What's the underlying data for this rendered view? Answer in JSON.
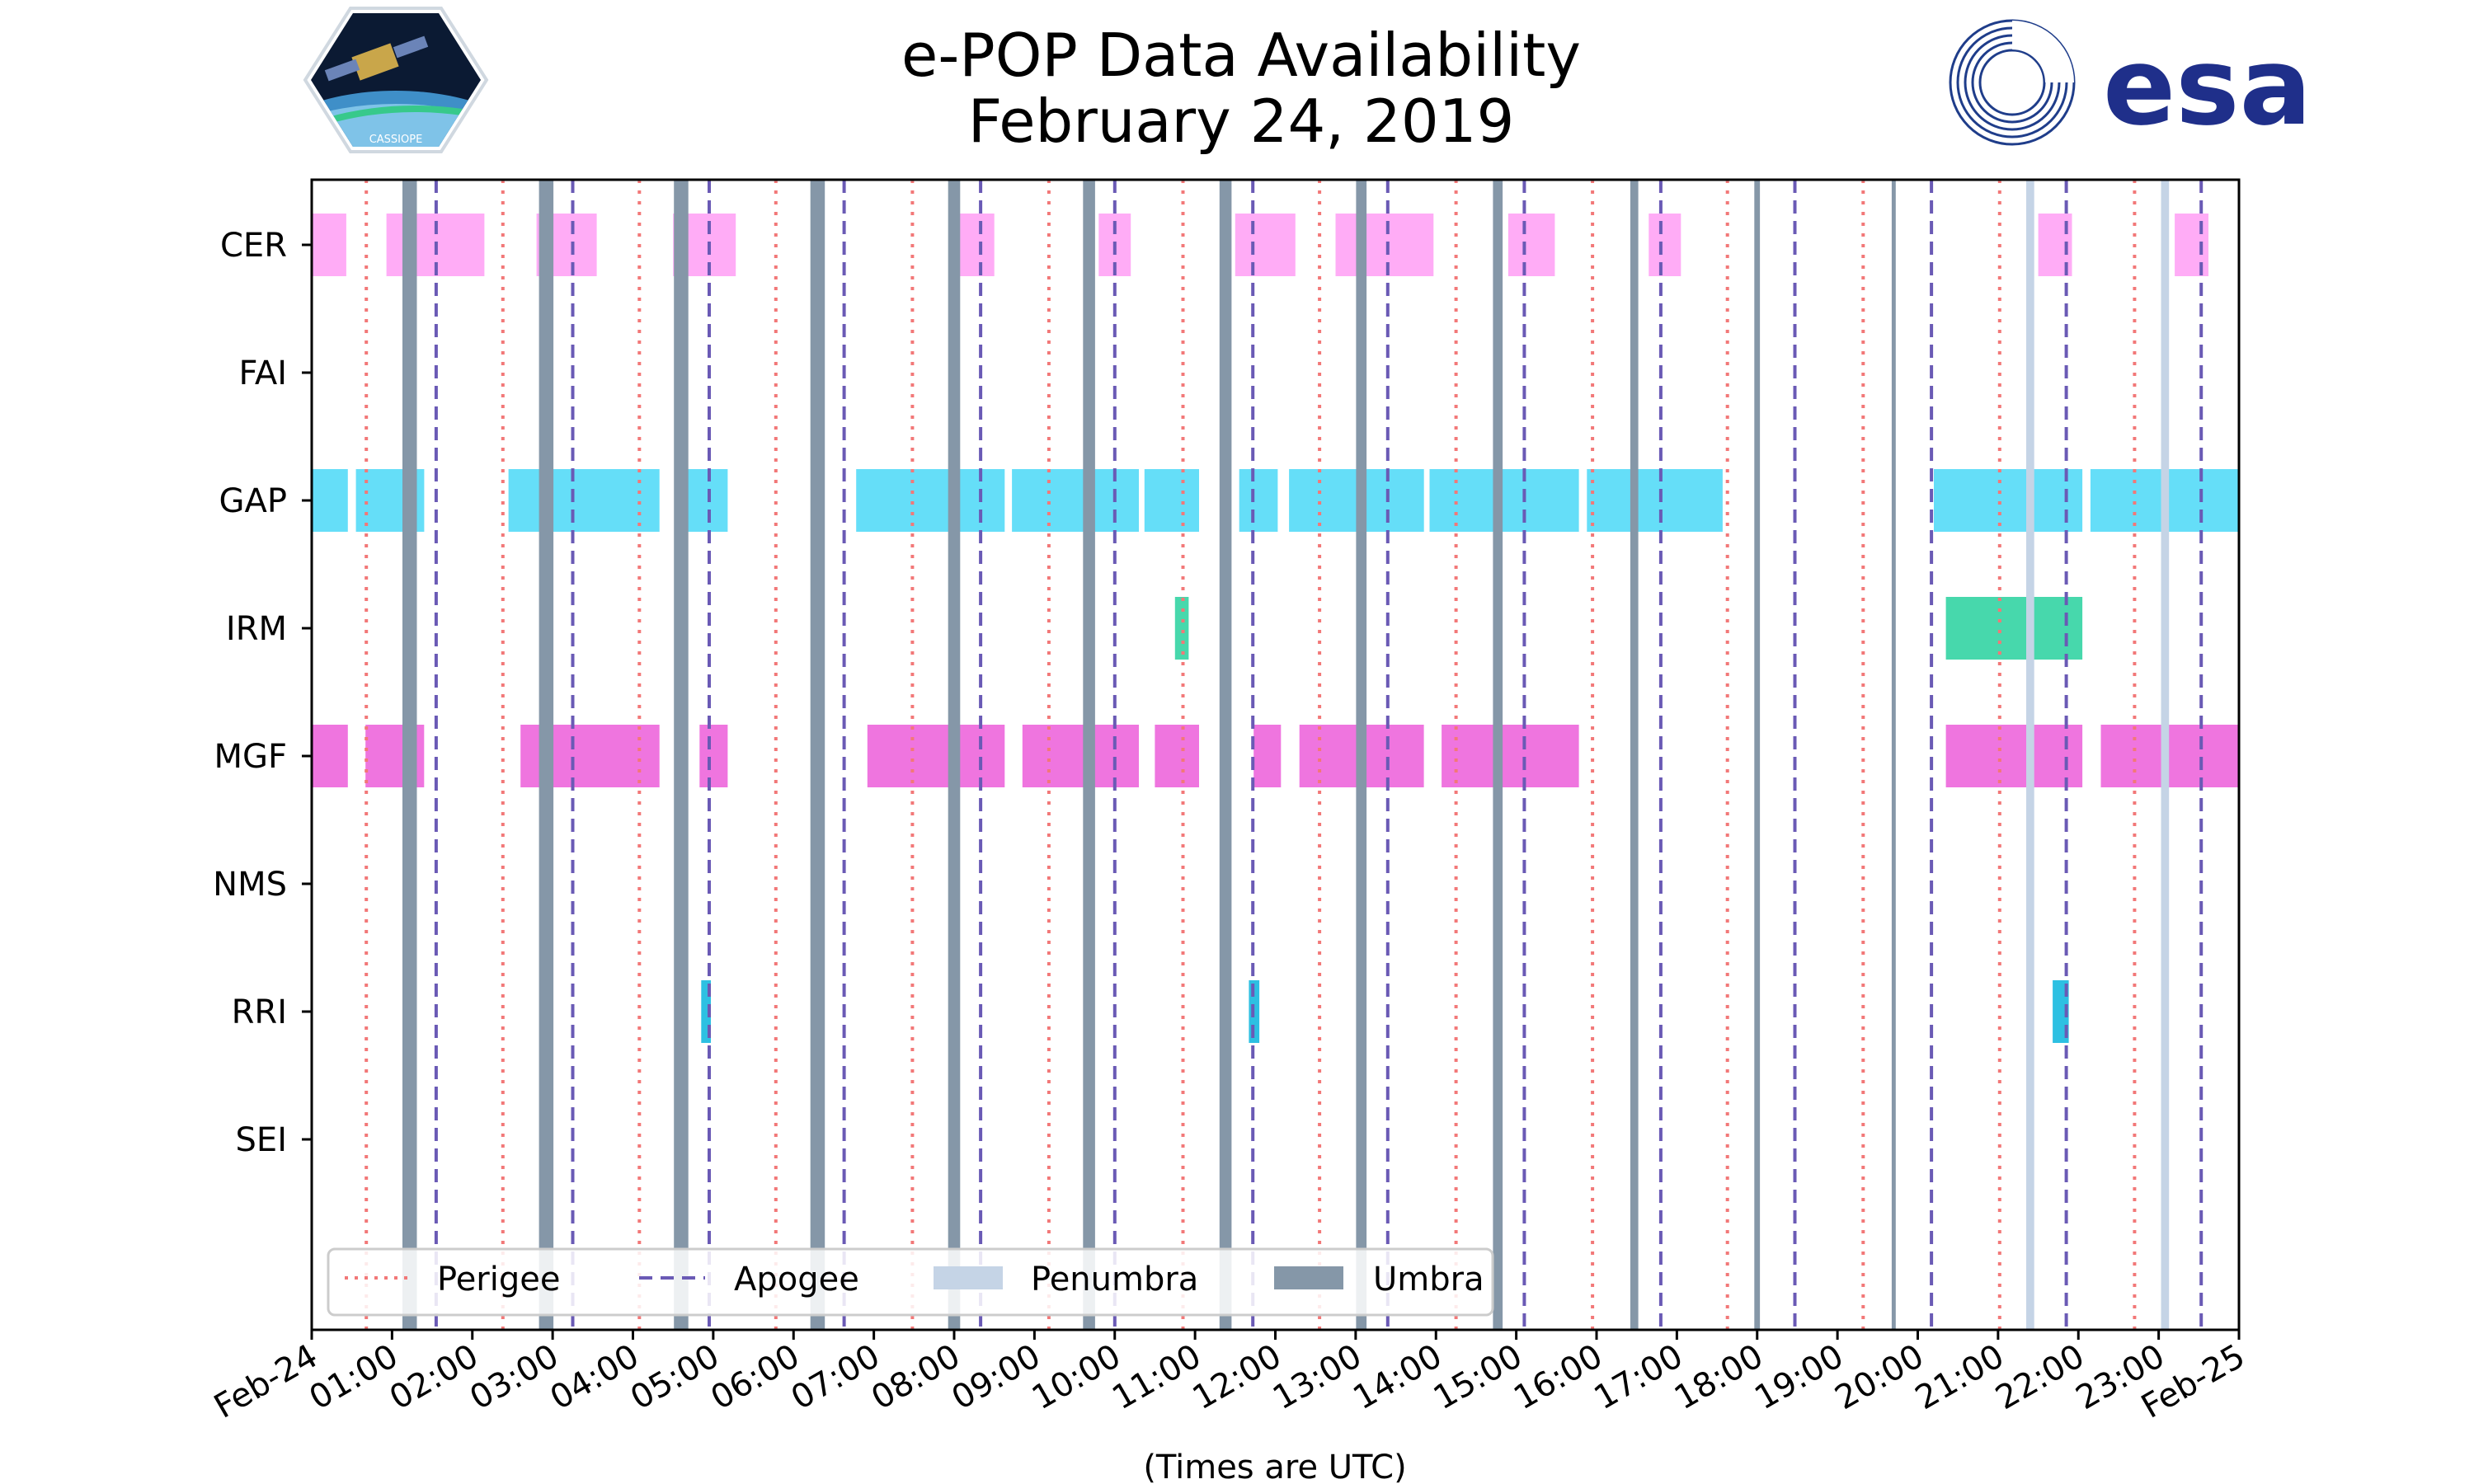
{
  "chart_data": {
    "type": "timeline",
    "title_lines": [
      "e-POP Data Availability",
      "February 24, 2019"
    ],
    "xlabel": "(Times are UTC)",
    "xlim_hours": [
      0,
      24
    ],
    "x_tick_labels": [
      "Feb-24",
      "01:00",
      "02:00",
      "03:00",
      "04:00",
      "05:00",
      "06:00",
      "07:00",
      "08:00",
      "09:00",
      "10:00",
      "11:00",
      "12:00",
      "13:00",
      "14:00",
      "15:00",
      "16:00",
      "17:00",
      "18:00",
      "19:00",
      "20:00",
      "21:00",
      "22:00",
      "23:00",
      "Feb-25"
    ],
    "instruments": [
      "CER",
      "FAI",
      "GAP",
      "IRM",
      "MGF",
      "NMS",
      "RRI",
      "SEI"
    ],
    "colors": {
      "CER": "#ffa8f5",
      "GAP": "#5ddcf8",
      "IRM": "#3dd6a8",
      "MGF": "#ee6edd",
      "RRI": "#22bde0",
      "perigee": "#f27878",
      "apogee": "#6a5ab5",
      "umbra": "#8597a8",
      "penumbra": "#c5d4e6"
    },
    "availability": {
      "CER": [
        [
          0.0,
          0.43
        ],
        [
          0.93,
          2.15
        ],
        [
          2.8,
          3.55
        ],
        [
          4.5,
          5.28
        ],
        [
          7.98,
          8.5
        ],
        [
          9.8,
          10.2
        ],
        [
          11.5,
          12.25
        ],
        [
          12.75,
          13.97
        ],
        [
          14.9,
          15.48
        ],
        [
          16.65,
          17.05
        ],
        [
          21.5,
          21.92
        ],
        [
          23.2,
          23.62
        ]
      ],
      "FAI": [],
      "GAP": [
        [
          0.0,
          0.45
        ],
        [
          0.55,
          1.4
        ],
        [
          2.45,
          4.33
        ],
        [
          4.67,
          5.18
        ],
        [
          6.78,
          8.63
        ],
        [
          8.72,
          10.3
        ],
        [
          10.37,
          11.05
        ],
        [
          11.55,
          12.03
        ],
        [
          12.17,
          13.85
        ],
        [
          13.92,
          15.78
        ],
        [
          15.88,
          17.57
        ],
        [
          20.2,
          22.05
        ],
        [
          22.15,
          24.0
        ]
      ],
      "IRM": [
        [
          10.75,
          10.92
        ],
        [
          20.35,
          22.05
        ]
      ],
      "MGF": [
        [
          0.0,
          0.45
        ],
        [
          0.67,
          1.4
        ],
        [
          2.6,
          4.33
        ],
        [
          4.83,
          5.18
        ],
        [
          6.92,
          8.63
        ],
        [
          8.85,
          10.3
        ],
        [
          10.5,
          11.05
        ],
        [
          11.73,
          12.07
        ],
        [
          12.3,
          13.85
        ],
        [
          14.07,
          15.78
        ],
        [
          20.35,
          22.05
        ],
        [
          22.28,
          24.0
        ]
      ],
      "NMS": [],
      "RRI": [
        [
          4.85,
          4.97
        ],
        [
          11.67,
          11.8
        ],
        [
          21.68,
          21.88
        ]
      ],
      "SEI": []
    },
    "perigee_hours": [
      0.68,
      2.38,
      4.08,
      5.78,
      7.48,
      9.18,
      10.85,
      12.55,
      14.25,
      15.95,
      17.63,
      19.32,
      21.02,
      22.7
    ],
    "apogee_hours": [
      1.55,
      3.25,
      4.95,
      6.63,
      8.33,
      10.0,
      11.72,
      13.4,
      15.1,
      16.8,
      18.47,
      20.17,
      21.85,
      23.53
    ],
    "umbra_hours": [
      1.22,
      2.92,
      4.6,
      6.3,
      8.0,
      9.68,
      11.38,
      13.07,
      14.77,
      16.47,
      18.0,
      19.7
    ],
    "umbra_widths_hours": [
      0.18,
      0.18,
      0.18,
      0.18,
      0.15,
      0.15,
      0.15,
      0.13,
      0.12,
      0.1,
      0.07,
      0.05
    ],
    "penumbra_hours": [
      21.4,
      23.08
    ],
    "legend": {
      "placement": "lower-left",
      "entries": [
        {
          "label": "Perigee",
          "style": "dotted"
        },
        {
          "label": "Apogee",
          "style": "dashed"
        },
        {
          "label": "Penumbra",
          "style": "patch"
        },
        {
          "label": "Umbra",
          "style": "patch"
        }
      ]
    },
    "logos": {
      "left": "CASSIOPE",
      "right": "esa"
    }
  }
}
